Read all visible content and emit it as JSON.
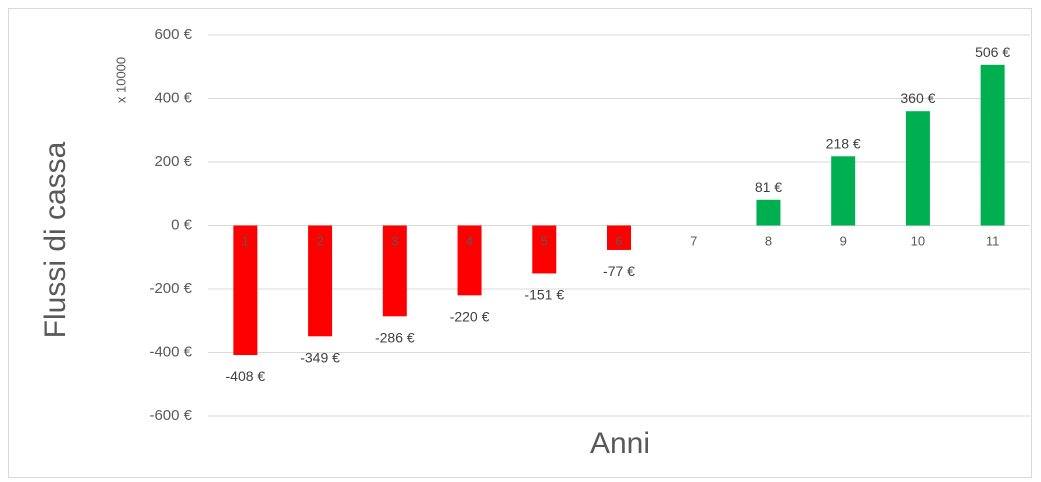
{
  "chart_data": {
    "type": "bar",
    "categories": [
      "1",
      "2",
      "3",
      "4",
      "5",
      "6",
      "7",
      "8",
      "9",
      "10",
      "11"
    ],
    "values": [
      -408,
      -349,
      -286,
      -220,
      -151,
      -77,
      0,
      81,
      218,
      360,
      506
    ],
    "data_labels": [
      "-408 €",
      "-349 €",
      "-286 €",
      "-220 €",
      "-151 €",
      "-77 €",
      "",
      "81 €",
      "218 €",
      "360 €",
      "506 €"
    ],
    "xlabel": "Anni",
    "ylabel": "Flussi di cassa",
    "y_unit_label": "x 10000",
    "ylim": [
      -600,
      600
    ],
    "y_ticks": [
      600,
      400,
      200,
      0,
      -200,
      -400,
      -600
    ],
    "y_tick_labels": [
      "600 €",
      "400 €",
      "200 €",
      "0 €",
      "-200 €",
      "-400 €",
      "-600 €"
    ],
    "grid": true,
    "colors": {
      "negative": "#ff0000",
      "positive": "#00b050",
      "grid": "#d9d9d9"
    }
  }
}
